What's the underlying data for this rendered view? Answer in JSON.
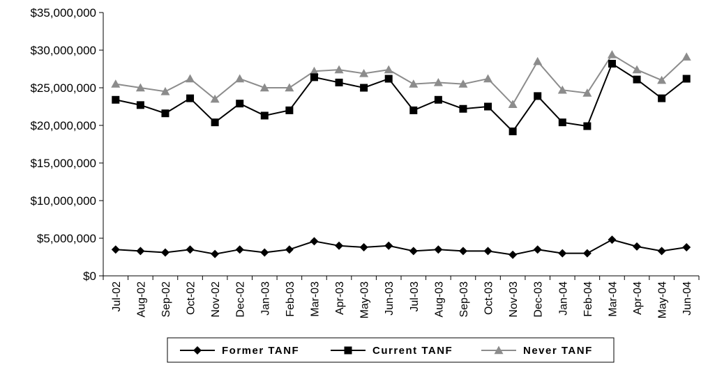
{
  "chart_data": {
    "type": "line",
    "categories": [
      "Jul-02",
      "Aug-02",
      "Sep-02",
      "Oct-02",
      "Nov-02",
      "Dec-02",
      "Jan-03",
      "Feb-03",
      "Mar-03",
      "Apr-03",
      "May-03",
      "Jun-03",
      "Jul-03",
      "Aug-03",
      "Sep-03",
      "Oct-03",
      "Nov-03",
      "Dec-03",
      "Jan-04",
      "Feb-04",
      "Mar-04",
      "Apr-04",
      "May-04",
      "Jun-04"
    ],
    "ylim": [
      0,
      35000000
    ],
    "y_ticks": [
      "$0",
      "$5,000,000",
      "$10,000,000",
      "$15,000,000",
      "$20,000,000",
      "$25,000,000",
      "$30,000,000",
      "$35,000,000"
    ],
    "grid": false,
    "legend_position": "bottom",
    "series": [
      {
        "name": "Former TANF",
        "color": "#000000",
        "marker": "diamond",
        "values": [
          3500000,
          3300000,
          3100000,
          3500000,
          2900000,
          3500000,
          3100000,
          3500000,
          4600000,
          4000000,
          3800000,
          4000000,
          3300000,
          3500000,
          3300000,
          3300000,
          2800000,
          3500000,
          3000000,
          3000000,
          4800000,
          3900000,
          3300000,
          3800000
        ]
      },
      {
        "name": "Current TANF",
        "color": "#000000",
        "marker": "square",
        "values": [
          23400000,
          22700000,
          21600000,
          23600000,
          20400000,
          22900000,
          21300000,
          22000000,
          26400000,
          25700000,
          25000000,
          26200000,
          22000000,
          23400000,
          22200000,
          22500000,
          19200000,
          23900000,
          20400000,
          19900000,
          28200000,
          26100000,
          23600000,
          26200000
        ]
      },
      {
        "name": "Never TANF",
        "color": "#8c8c8c",
        "marker": "triangle",
        "values": [
          25500000,
          25000000,
          24500000,
          26200000,
          23500000,
          26200000,
          25000000,
          25000000,
          27200000,
          27400000,
          26900000,
          27400000,
          25500000,
          25700000,
          25500000,
          26200000,
          22800000,
          28500000,
          24700000,
          24300000,
          29400000,
          27400000,
          26000000,
          29100000
        ]
      }
    ]
  }
}
